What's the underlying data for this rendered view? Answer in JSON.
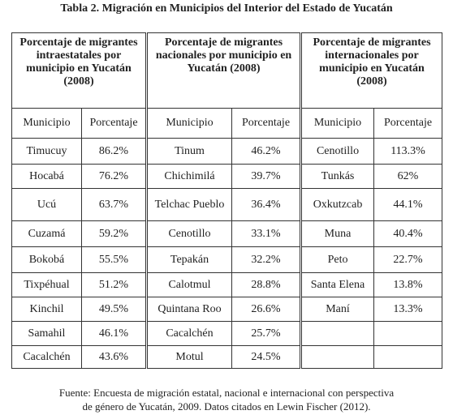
{
  "header": {
    "title": "Tabla 2. Migración en Municipios del Interior del Estado de Yucatán"
  },
  "table": {
    "groups": [
      "Porcentaje de migrantes intraestatales por municipio en Yucatán (2008)",
      "Porcentaje de migrantes nacionales por municipio en Yucatán (2008)",
      "Porcentaje de migrantes internacionales por municipio en Yucatán (2008)"
    ],
    "columns": [
      "Municipio",
      "Porcentaje",
      "Municipio",
      "Porcentaje",
      "Municipio",
      "Porcentaje"
    ],
    "rows": [
      [
        "Timucuy",
        "86.2%",
        "Tinum",
        "46.2%",
        "Cenotillo",
        "113.3%"
      ],
      [
        "Hocabá",
        "76.2%",
        "Chichimilá",
        "39.7%",
        "Tunkás",
        "62%"
      ],
      [
        "Ucú",
        "63.7%",
        "Telchac Pueblo",
        "36.4%",
        "Oxkutzcab",
        "44.1%"
      ],
      [
        "Cuzamá",
        "59.2%",
        "Cenotillo",
        "33.1%",
        "Muna",
        "40.4%"
      ],
      [
        "Bokobá",
        "55.5%",
        "Tepakán",
        "32.2%",
        "Peto",
        "22.7%"
      ],
      [
        "Tixpéhual",
        "51.2%",
        "Calotmul",
        "28.8%",
        "Santa Elena",
        "13.8%"
      ],
      [
        "Kinchil",
        "49.5%",
        "Quintana Roo",
        "26.6%",
        "Maní",
        "13.3%"
      ],
      [
        "Samahil",
        "46.1%",
        "Cacalchén",
        "25.7%"
      ],
      [
        "Cacalchén",
        "43.6%",
        "Motul",
        "24.5%"
      ]
    ]
  },
  "source": {
    "lines": [
      "Fuente: Encuesta de migración estatal, nacional e internacional con perspectiva",
      "de género de Yucatán, 2009. Datos citados en Lewin Fischer (2012)."
    ]
  }
}
